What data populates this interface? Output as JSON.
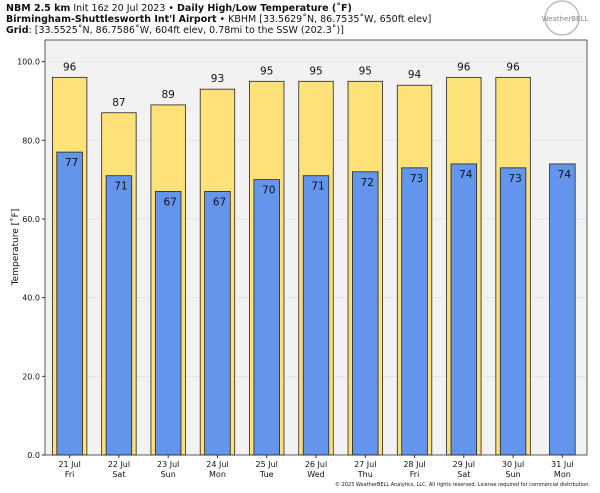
{
  "chart_data": {
    "type": "bar",
    "title_lines": [
      [
        {
          "text": "NBM 2.5 km",
          "bold": true
        },
        {
          "text": " Init 16z 20 Jul 2023 • ",
          "bold": false
        },
        {
          "text": "Daily High/Low Temperature (˚F)",
          "bold": true
        }
      ],
      [
        {
          "text": "Birmingham-Shuttlesworth Int'l Airport",
          "bold": true
        },
        {
          "text": " • KBHM [33.5629˚N, 86.7535˚W, 650ft elev]",
          "bold": false
        }
      ],
      [
        {
          "text": "Grid",
          "bold": true
        },
        {
          "text": ": [33.5525˚N, 86.7586˚W, 604ft elev, 0.78mi to the SSW (202.3˚)]",
          "bold": false
        }
      ]
    ],
    "logo": "WeatherBELL",
    "footer": "© 2023 WeatherBELL Analytics, LLC. All rights reserved. License required for commercial distribution.",
    "ylabel": "Temperature [˚F]",
    "categories": [
      "21 Jul",
      "22 Jul",
      "23 Jul",
      "24 Jul",
      "25 Jul",
      "26 Jul",
      "27 Jul",
      "28 Jul",
      "29 Jul",
      "30 Jul",
      "31 Jul"
    ],
    "weekdays": [
      "Fri",
      "Sat",
      "Sun",
      "Mon",
      "Tue",
      "Wed",
      "Thu",
      "Fri",
      "Sat",
      "Sun",
      "Mon"
    ],
    "series": [
      {
        "color": "#ffe17a",
        "values": [
          96,
          87,
          89,
          93,
          95,
          95,
          95,
          94,
          96,
          96,
          null
        ]
      },
      {
        "color": "#6495ed",
        "values": [
          77,
          71,
          67,
          67,
          70,
          71,
          72,
          73,
          74,
          73,
          74
        ]
      }
    ],
    "ylim": [
      0,
      105.5
    ],
    "yticks": [
      {
        "value": 0,
        "label": "0.0"
      },
      {
        "value": 20,
        "label": "20.0"
      },
      {
        "value": 40,
        "label": "40.0"
      },
      {
        "value": 60,
        "label": "60.0"
      },
      {
        "value": 80,
        "label": "80.0"
      },
      {
        "value": 100,
        "label": "100.0"
      }
    ],
    "grid": true
  }
}
